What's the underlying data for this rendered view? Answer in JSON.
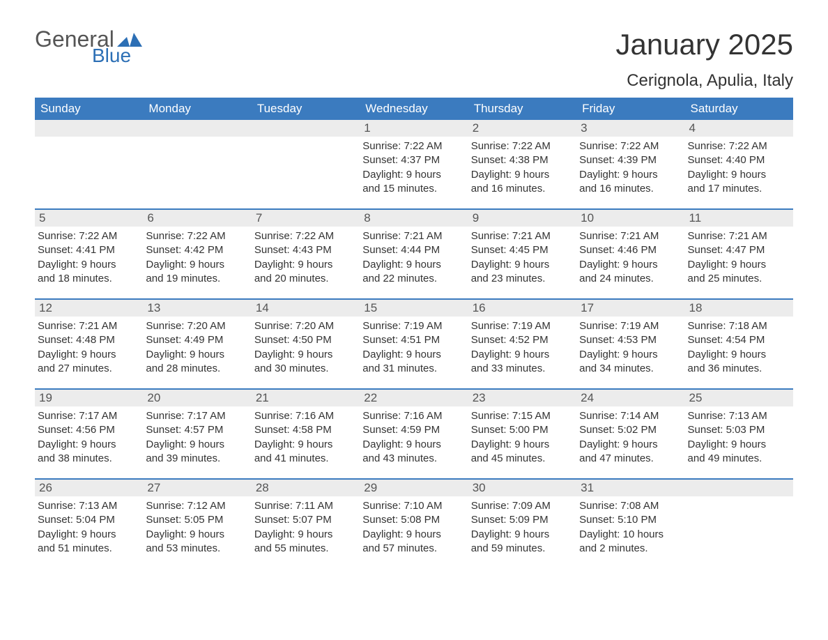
{
  "logo": {
    "text_general": "General",
    "text_blue": "Blue",
    "flag_color": "#2c6fb5",
    "general_color": "#555555",
    "blue_color": "#2c6fb5"
  },
  "header": {
    "month_title": "January 2025",
    "location": "Cerignola, Apulia, Italy",
    "title_color": "#333333",
    "title_fontsize": 42,
    "location_fontsize": 24
  },
  "calendar": {
    "header_bg": "#3b7bbf",
    "header_text_color": "#ffffff",
    "daynum_bg": "#ececec",
    "daynum_color": "#555555",
    "text_color": "#333333",
    "row_border_color": "#3b7bbf",
    "background_color": "#ffffff",
    "day_headers": [
      "Sunday",
      "Monday",
      "Tuesday",
      "Wednesday",
      "Thursday",
      "Friday",
      "Saturday"
    ],
    "weeks": [
      [
        {
          "day": "",
          "sunrise": "",
          "sunset": "",
          "daylight1": "",
          "daylight2": ""
        },
        {
          "day": "",
          "sunrise": "",
          "sunset": "",
          "daylight1": "",
          "daylight2": ""
        },
        {
          "day": "",
          "sunrise": "",
          "sunset": "",
          "daylight1": "",
          "daylight2": ""
        },
        {
          "day": "1",
          "sunrise": "Sunrise: 7:22 AM",
          "sunset": "Sunset: 4:37 PM",
          "daylight1": "Daylight: 9 hours",
          "daylight2": "and 15 minutes."
        },
        {
          "day": "2",
          "sunrise": "Sunrise: 7:22 AM",
          "sunset": "Sunset: 4:38 PM",
          "daylight1": "Daylight: 9 hours",
          "daylight2": "and 16 minutes."
        },
        {
          "day": "3",
          "sunrise": "Sunrise: 7:22 AM",
          "sunset": "Sunset: 4:39 PM",
          "daylight1": "Daylight: 9 hours",
          "daylight2": "and 16 minutes."
        },
        {
          "day": "4",
          "sunrise": "Sunrise: 7:22 AM",
          "sunset": "Sunset: 4:40 PM",
          "daylight1": "Daylight: 9 hours",
          "daylight2": "and 17 minutes."
        }
      ],
      [
        {
          "day": "5",
          "sunrise": "Sunrise: 7:22 AM",
          "sunset": "Sunset: 4:41 PM",
          "daylight1": "Daylight: 9 hours",
          "daylight2": "and 18 minutes."
        },
        {
          "day": "6",
          "sunrise": "Sunrise: 7:22 AM",
          "sunset": "Sunset: 4:42 PM",
          "daylight1": "Daylight: 9 hours",
          "daylight2": "and 19 minutes."
        },
        {
          "day": "7",
          "sunrise": "Sunrise: 7:22 AM",
          "sunset": "Sunset: 4:43 PM",
          "daylight1": "Daylight: 9 hours",
          "daylight2": "and 20 minutes."
        },
        {
          "day": "8",
          "sunrise": "Sunrise: 7:21 AM",
          "sunset": "Sunset: 4:44 PM",
          "daylight1": "Daylight: 9 hours",
          "daylight2": "and 22 minutes."
        },
        {
          "day": "9",
          "sunrise": "Sunrise: 7:21 AM",
          "sunset": "Sunset: 4:45 PM",
          "daylight1": "Daylight: 9 hours",
          "daylight2": "and 23 minutes."
        },
        {
          "day": "10",
          "sunrise": "Sunrise: 7:21 AM",
          "sunset": "Sunset: 4:46 PM",
          "daylight1": "Daylight: 9 hours",
          "daylight2": "and 24 minutes."
        },
        {
          "day": "11",
          "sunrise": "Sunrise: 7:21 AM",
          "sunset": "Sunset: 4:47 PM",
          "daylight1": "Daylight: 9 hours",
          "daylight2": "and 25 minutes."
        }
      ],
      [
        {
          "day": "12",
          "sunrise": "Sunrise: 7:21 AM",
          "sunset": "Sunset: 4:48 PM",
          "daylight1": "Daylight: 9 hours",
          "daylight2": "and 27 minutes."
        },
        {
          "day": "13",
          "sunrise": "Sunrise: 7:20 AM",
          "sunset": "Sunset: 4:49 PM",
          "daylight1": "Daylight: 9 hours",
          "daylight2": "and 28 minutes."
        },
        {
          "day": "14",
          "sunrise": "Sunrise: 7:20 AM",
          "sunset": "Sunset: 4:50 PM",
          "daylight1": "Daylight: 9 hours",
          "daylight2": "and 30 minutes."
        },
        {
          "day": "15",
          "sunrise": "Sunrise: 7:19 AM",
          "sunset": "Sunset: 4:51 PM",
          "daylight1": "Daylight: 9 hours",
          "daylight2": "and 31 minutes."
        },
        {
          "day": "16",
          "sunrise": "Sunrise: 7:19 AM",
          "sunset": "Sunset: 4:52 PM",
          "daylight1": "Daylight: 9 hours",
          "daylight2": "and 33 minutes."
        },
        {
          "day": "17",
          "sunrise": "Sunrise: 7:19 AM",
          "sunset": "Sunset: 4:53 PM",
          "daylight1": "Daylight: 9 hours",
          "daylight2": "and 34 minutes."
        },
        {
          "day": "18",
          "sunrise": "Sunrise: 7:18 AM",
          "sunset": "Sunset: 4:54 PM",
          "daylight1": "Daylight: 9 hours",
          "daylight2": "and 36 minutes."
        }
      ],
      [
        {
          "day": "19",
          "sunrise": "Sunrise: 7:17 AM",
          "sunset": "Sunset: 4:56 PM",
          "daylight1": "Daylight: 9 hours",
          "daylight2": "and 38 minutes."
        },
        {
          "day": "20",
          "sunrise": "Sunrise: 7:17 AM",
          "sunset": "Sunset: 4:57 PM",
          "daylight1": "Daylight: 9 hours",
          "daylight2": "and 39 minutes."
        },
        {
          "day": "21",
          "sunrise": "Sunrise: 7:16 AM",
          "sunset": "Sunset: 4:58 PM",
          "daylight1": "Daylight: 9 hours",
          "daylight2": "and 41 minutes."
        },
        {
          "day": "22",
          "sunrise": "Sunrise: 7:16 AM",
          "sunset": "Sunset: 4:59 PM",
          "daylight1": "Daylight: 9 hours",
          "daylight2": "and 43 minutes."
        },
        {
          "day": "23",
          "sunrise": "Sunrise: 7:15 AM",
          "sunset": "Sunset: 5:00 PM",
          "daylight1": "Daylight: 9 hours",
          "daylight2": "and 45 minutes."
        },
        {
          "day": "24",
          "sunrise": "Sunrise: 7:14 AM",
          "sunset": "Sunset: 5:02 PM",
          "daylight1": "Daylight: 9 hours",
          "daylight2": "and 47 minutes."
        },
        {
          "day": "25",
          "sunrise": "Sunrise: 7:13 AM",
          "sunset": "Sunset: 5:03 PM",
          "daylight1": "Daylight: 9 hours",
          "daylight2": "and 49 minutes."
        }
      ],
      [
        {
          "day": "26",
          "sunrise": "Sunrise: 7:13 AM",
          "sunset": "Sunset: 5:04 PM",
          "daylight1": "Daylight: 9 hours",
          "daylight2": "and 51 minutes."
        },
        {
          "day": "27",
          "sunrise": "Sunrise: 7:12 AM",
          "sunset": "Sunset: 5:05 PM",
          "daylight1": "Daylight: 9 hours",
          "daylight2": "and 53 minutes."
        },
        {
          "day": "28",
          "sunrise": "Sunrise: 7:11 AM",
          "sunset": "Sunset: 5:07 PM",
          "daylight1": "Daylight: 9 hours",
          "daylight2": "and 55 minutes."
        },
        {
          "day": "29",
          "sunrise": "Sunrise: 7:10 AM",
          "sunset": "Sunset: 5:08 PM",
          "daylight1": "Daylight: 9 hours",
          "daylight2": "and 57 minutes."
        },
        {
          "day": "30",
          "sunrise": "Sunrise: 7:09 AM",
          "sunset": "Sunset: 5:09 PM",
          "daylight1": "Daylight: 9 hours",
          "daylight2": "and 59 minutes."
        },
        {
          "day": "31",
          "sunrise": "Sunrise: 7:08 AM",
          "sunset": "Sunset: 5:10 PM",
          "daylight1": "Daylight: 10 hours",
          "daylight2": "and 2 minutes."
        },
        {
          "day": "",
          "sunrise": "",
          "sunset": "",
          "daylight1": "",
          "daylight2": ""
        }
      ]
    ]
  }
}
